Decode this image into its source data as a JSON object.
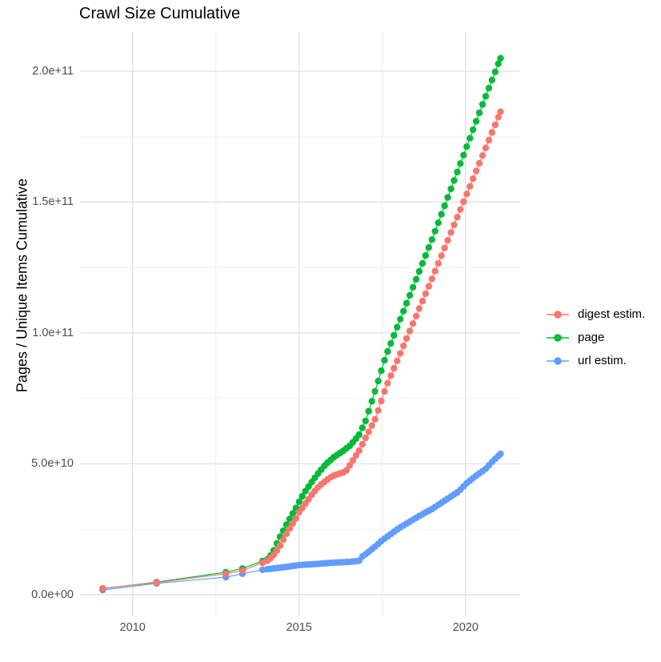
{
  "title": "Crawl Size Cumulative",
  "chart_data": {
    "type": "scatter",
    "subtype": "cumulative line + point series",
    "title": "Crawl Size Cumulative",
    "xlabel": "",
    "ylabel": "Pages / Unique Items Cumulative",
    "value_unit": "billions (1e9) of pages / unique items",
    "grid": "white panel, light gray major and minor gridlines, no axis lines",
    "legend_position": "right, vertically centered",
    "x_axis": {
      "xlim_years": [
        2008.42,
        2021.64
      ],
      "major_ticks": [
        {
          "year": 2010,
          "label": "2010"
        },
        {
          "year": 2015,
          "label": "2015"
        },
        {
          "year": 2020,
          "label": "2020"
        }
      ],
      "minor_tick_years": [
        2012.5,
        2017.5
      ]
    },
    "y_axis": {
      "label": "Pages / Unique Items Cumulative",
      "ylim_billions": [
        -8.3,
        215
      ],
      "major_ticks": [
        {
          "value_billions": 0,
          "label": "0.0e+00"
        },
        {
          "value_billions": 50,
          "label": "5.0e+10"
        },
        {
          "value_billions": 100,
          "label": "1.0e+11"
        },
        {
          "value_billions": 150,
          "label": "1.5e+11"
        },
        {
          "value_billions": 200,
          "label": "2.0e+11"
        }
      ],
      "minor_tick_values_billions": [
        25,
        75,
        125,
        175
      ]
    },
    "marker_dates": {
      "note": "one dot per crawl; sparse early crawls then ~monthly from 2014",
      "sparse": [
        2009.1,
        2010.72,
        2012.8,
        2013.3,
        2013.9
      ],
      "dense_start": 2014.05,
      "dense_end": 2021.05,
      "step_years": 0.095
    },
    "series": [
      {
        "name": "digest estim.",
        "color": "#F8766D",
        "points_year_vs_billions": [
          [
            2009.1,
            2.4
          ],
          [
            2010.72,
            4.6
          ],
          [
            2012.8,
            8.0
          ],
          [
            2013.3,
            9.2
          ],
          [
            2013.9,
            12.2
          ],
          [
            2014.05,
            13.0
          ],
          [
            2014.2,
            14.5
          ],
          [
            2014.4,
            18.0
          ],
          [
            2014.65,
            24.0
          ],
          [
            2014.9,
            29.0
          ],
          [
            2015.0,
            31.5
          ],
          [
            2015.2,
            35.0
          ],
          [
            2015.4,
            38.5
          ],
          [
            2015.6,
            41.5
          ],
          [
            2015.8,
            43.5
          ],
          [
            2016.0,
            45.3
          ],
          [
            2016.2,
            46.2
          ],
          [
            2016.4,
            47.0
          ],
          [
            2016.6,
            51.0
          ],
          [
            2016.8,
            55.0
          ],
          [
            2017.0,
            60.0
          ],
          [
            2017.3,
            67.5
          ],
          [
            2017.6,
            79.0
          ],
          [
            2018.0,
            91.0
          ],
          [
            2018.5,
            106.0
          ],
          [
            2019.0,
            121.0
          ],
          [
            2019.5,
            136.5
          ],
          [
            2020.0,
            152.0
          ],
          [
            2020.5,
            167.5
          ],
          [
            2021.05,
            184.5
          ]
        ]
      },
      {
        "name": "page",
        "color": "#00BA38",
        "points_year_vs_billions": [
          [
            2009.1,
            2.3
          ],
          [
            2010.72,
            4.8
          ],
          [
            2012.8,
            8.6
          ],
          [
            2013.3,
            10.0
          ],
          [
            2013.9,
            12.8
          ],
          [
            2014.05,
            13.5
          ],
          [
            2014.2,
            15.8
          ],
          [
            2014.4,
            21.4
          ],
          [
            2014.65,
            27.5
          ],
          [
            2014.9,
            33.0
          ],
          [
            2015.0,
            35.5
          ],
          [
            2015.2,
            39.8
          ],
          [
            2015.4,
            43.4
          ],
          [
            2015.6,
            46.8
          ],
          [
            2015.8,
            49.8
          ],
          [
            2016.05,
            52.6
          ],
          [
            2016.3,
            54.7
          ],
          [
            2016.55,
            57.2
          ],
          [
            2016.8,
            61.0
          ],
          [
            2017.0,
            66.5
          ],
          [
            2017.3,
            78.5
          ],
          [
            2017.6,
            91.0
          ],
          [
            2018.0,
            104.0
          ],
          [
            2018.5,
            120.0
          ],
          [
            2019.0,
            136.0
          ],
          [
            2019.5,
            153.0
          ],
          [
            2020.0,
            170.0
          ],
          [
            2020.5,
            187.0
          ],
          [
            2021.05,
            205.0
          ]
        ]
      },
      {
        "name": "url estim.",
        "color": "#619CFF",
        "points_year_vs_billions": [
          [
            2009.1,
            1.8
          ],
          [
            2010.72,
            4.3
          ],
          [
            2012.8,
            6.7
          ],
          [
            2013.3,
            8.0
          ],
          [
            2013.9,
            9.5
          ],
          [
            2014.5,
            10.4
          ],
          [
            2015.0,
            11.3
          ],
          [
            2015.5,
            11.7
          ],
          [
            2016.0,
            12.2
          ],
          [
            2016.5,
            12.5
          ],
          [
            2016.8,
            12.9
          ],
          [
            2016.88,
            14.4
          ],
          [
            2017.0,
            15.5
          ],
          [
            2017.2,
            17.5
          ],
          [
            2017.5,
            20.8
          ],
          [
            2018.0,
            25.4
          ],
          [
            2018.6,
            30.0
          ],
          [
            2019.0,
            32.8
          ],
          [
            2019.5,
            37.0
          ],
          [
            2019.8,
            39.5
          ],
          [
            2020.0,
            42.2
          ],
          [
            2020.3,
            45.3
          ],
          [
            2020.6,
            48.0
          ],
          [
            2020.8,
            50.8
          ],
          [
            2021.05,
            53.8
          ]
        ]
      }
    ]
  }
}
